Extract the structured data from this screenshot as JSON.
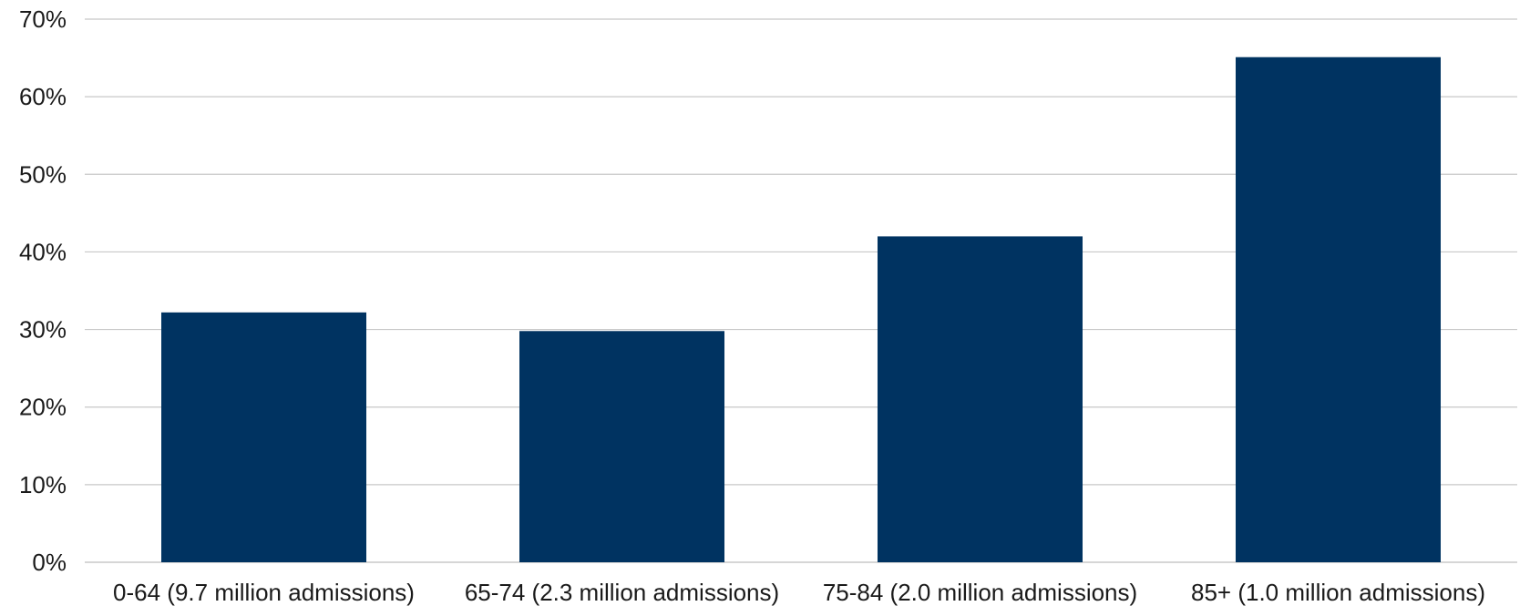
{
  "chart_data": {
    "type": "bar",
    "categories": [
      "0-64 (9.7 million admissions)",
      "65-74 (2.3 million admissions)",
      "75-84 (2.0 million admissions)",
      "85+ (1.0 million admissions)"
    ],
    "values": [
      32.2,
      29.8,
      42.0,
      65.1
    ],
    "y_tick_labels": [
      "0%",
      "10%",
      "20%",
      "30%",
      "40%",
      "50%",
      "60%",
      "70%"
    ],
    "ylim": [
      0,
      70
    ],
    "y_unit": "%",
    "grid": true,
    "legend": "none",
    "colors": {
      "bar": "#003361",
      "grid": "#c8c8c8"
    }
  }
}
